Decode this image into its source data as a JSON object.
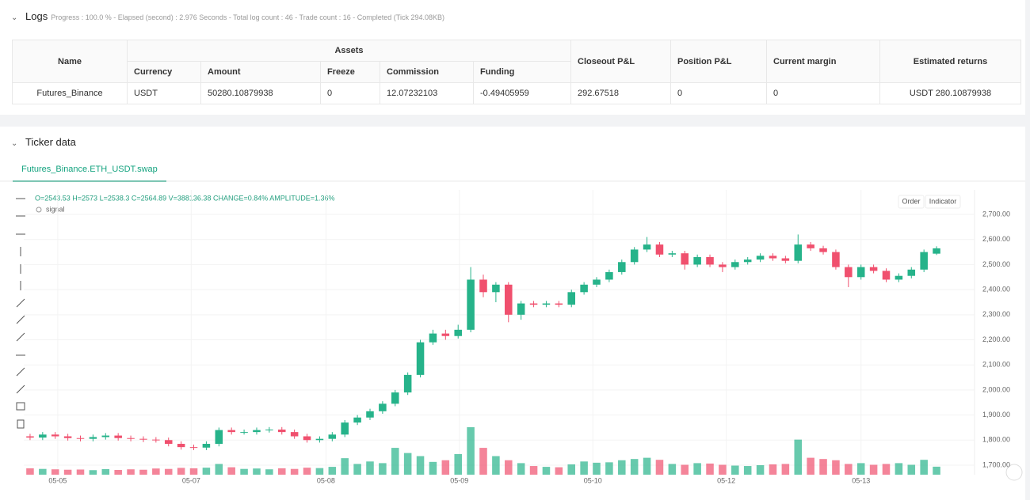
{
  "logs": {
    "title": "Logs",
    "status": "Progress : 100.0 % - Elapsed (second) : 2.976  Seconds - Total log count : 46 - Trade count : 16 - Completed (Tick 294.08KB)",
    "table": {
      "headers": [
        "Name",
        "Assets",
        "Closeout P&L",
        "Position P&L",
        "Current margin",
        "Estimated returns"
      ],
      "sub_headers": [
        "Currency",
        "Amount",
        "Freeze",
        "Commission",
        "Funding"
      ],
      "rows": [
        [
          "Futures_Binance",
          "USDT",
          "50280.10879938",
          "0",
          "12.07232103",
          "-0.49405959",
          "292.67518",
          "0",
          "0",
          "USDT 280.10879938"
        ]
      ]
    }
  },
  "ticker": {
    "title": "Ticker data",
    "tab": "Futures_Binance.ETH_USDT.swap",
    "buttons": [
      "Order",
      "Indicator"
    ]
  },
  "chart_data": {
    "type": "candlestick",
    "info": "O=2543.53 H=2573 L=2538.3 C=2564.89 V=388136.38 CHANGE=0.84% AMPLITUDE=1.36%",
    "legend": "signal",
    "up_color": "#26b38a",
    "down_color": "#f0506e",
    "xlim": [
      -0.5,
      72.5
    ],
    "xticks": [
      {
        "value": 2.2,
        "label": "05-05"
      },
      {
        "value": 12.8,
        "label": "05-07"
      },
      {
        "value": 23.5,
        "label": "05-08"
      },
      {
        "value": 34.1,
        "label": "05-09"
      },
      {
        "value": 44.7,
        "label": "05-10"
      },
      {
        "value": 55.3,
        "label": "05-12"
      },
      {
        "value": 66.0,
        "label": "05-13"
      }
    ],
    "ylim": [
      1662,
      2798
    ],
    "yticks": [
      {
        "value": 1700,
        "label": "1,700.00"
      },
      {
        "value": 1800,
        "label": "1,800.00"
      },
      {
        "value": 1900,
        "label": "1,900.00"
      },
      {
        "value": 2000,
        "label": "2,000.00"
      },
      {
        "value": 2100,
        "label": "2,100.00"
      },
      {
        "value": 2200,
        "label": "2,200.00"
      },
      {
        "value": 2300,
        "label": "2,300.00"
      },
      {
        "value": 2400,
        "label": "2,400.00"
      },
      {
        "value": 2500,
        "label": "2,500.00"
      },
      {
        "value": 2600,
        "label": "2,600.00"
      },
      {
        "value": 2700,
        "label": "2,700.00"
      }
    ],
    "grid": true,
    "open": [
      1815,
      1810,
      1822,
      1815,
      1808,
      1805,
      1812,
      1818,
      1808,
      1805,
      1802,
      1800,
      1785,
      1772,
      1770,
      1785,
      1840,
      1832,
      1832,
      1840,
      1842,
      1832,
      1815,
      1800,
      1805,
      1822,
      1870,
      1890,
      1915,
      1945,
      1990,
      2060,
      2190,
      2225,
      2215,
      2240,
      2440,
      2390,
      2420,
      2300,
      2345,
      2340,
      2345,
      2340,
      2390,
      2420,
      2440,
      2470,
      2510,
      2560,
      2580,
      2540,
      2545,
      2500,
      2530,
      2500,
      2490,
      2510,
      2520,
      2535,
      2525,
      2515,
      2580,
      2565,
      2550,
      2490,
      2450,
      2490,
      2475,
      2440,
      2455,
      2480,
      2543.53
    ],
    "high": [
      1825,
      1832,
      1832,
      1825,
      1818,
      1822,
      1828,
      1828,
      1818,
      1815,
      1812,
      1810,
      1795,
      1782,
      1795,
      1850,
      1850,
      1842,
      1850,
      1852,
      1852,
      1842,
      1825,
      1815,
      1832,
      1880,
      1900,
      1925,
      1955,
      2000,
      2070,
      2200,
      2240,
      2240,
      2260,
      2490,
      2460,
      2430,
      2430,
      2355,
      2355,
      2355,
      2355,
      2400,
      2430,
      2450,
      2480,
      2520,
      2570,
      2610,
      2590,
      2555,
      2555,
      2540,
      2540,
      2510,
      2520,
      2530,
      2545,
      2545,
      2535,
      2620,
      2590,
      2575,
      2560,
      2500,
      2500,
      2500,
      2485,
      2465,
      2490,
      2560,
      2573
    ],
    "low": [
      1800,
      1800,
      1805,
      1798,
      1795,
      1795,
      1802,
      1798,
      1795,
      1792,
      1790,
      1775,
      1762,
      1760,
      1760,
      1775,
      1822,
      1822,
      1822,
      1830,
      1822,
      1805,
      1790,
      1790,
      1795,
      1812,
      1860,
      1880,
      1905,
      1935,
      1980,
      2050,
      2180,
      2200,
      2205,
      2230,
      2370,
      2350,
      2270,
      2280,
      2330,
      2330,
      2330,
      2330,
      2380,
      2410,
      2430,
      2460,
      2500,
      2550,
      2530,
      2530,
      2480,
      2490,
      2490,
      2470,
      2480,
      2500,
      2510,
      2515,
      2505,
      2505,
      2555,
      2540,
      2480,
      2410,
      2440,
      2465,
      2430,
      2430,
      2445,
      2470,
      2538.3
    ],
    "close": [
      1810,
      1822,
      1815,
      1808,
      1805,
      1812,
      1818,
      1808,
      1805,
      1802,
      1800,
      1785,
      1772,
      1770,
      1785,
      1840,
      1832,
      1832,
      1840,
      1842,
      1832,
      1815,
      1800,
      1805,
      1822,
      1870,
      1890,
      1915,
      1945,
      1990,
      2060,
      2190,
      2225,
      2215,
      2240,
      2440,
      2390,
      2420,
      2300,
      2345,
      2340,
      2345,
      2340,
      2390,
      2420,
      2440,
      2470,
      2510,
      2560,
      2580,
      2540,
      2545,
      2500,
      2530,
      2500,
      2490,
      2510,
      2520,
      2535,
      2525,
      2515,
      2580,
      2565,
      2550,
      2490,
      2450,
      2490,
      2475,
      2440,
      2455,
      2480,
      2550,
      2564.89
    ],
    "volume": [
      310000,
      280000,
      260000,
      240000,
      250000,
      220000,
      270000,
      230000,
      260000,
      240000,
      300000,
      280000,
      330000,
      310000,
      340000,
      520000,
      360000,
      280000,
      300000,
      260000,
      310000,
      280000,
      340000,
      320000,
      380000,
      800000,
      520000,
      640000,
      560000,
      1300000,
      1050000,
      900000,
      620000,
      700000,
      1000000,
      2300000,
      1300000,
      900000,
      700000,
      560000,
      420000,
      380000,
      360000,
      500000,
      640000,
      580000,
      600000,
      700000,
      760000,
      820000,
      720000,
      520000,
      480000,
      560000,
      540000,
      480000,
      440000,
      420000,
      460000,
      500000,
      520000,
      1700000,
      820000,
      760000,
      700000,
      520000,
      560000,
      480000,
      520000,
      560000,
      480000,
      720000,
      388136.38
    ]
  }
}
